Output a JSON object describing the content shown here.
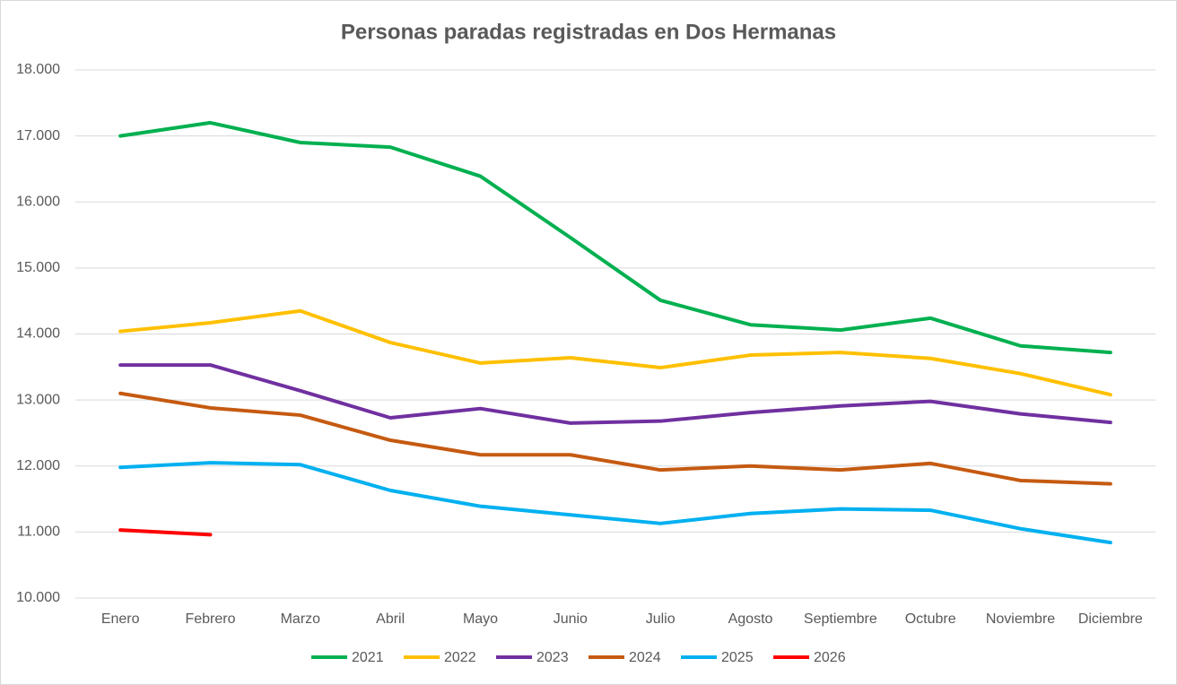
{
  "chart_data": {
    "type": "line",
    "title": "Personas paradas registradas en Dos Hermanas",
    "categories": [
      "Enero",
      "Febrero",
      "Marzo",
      "Abril",
      "Mayo",
      "Junio",
      "Julio",
      "Agosto",
      "Septiembre",
      "Octubre",
      "Noviembre",
      "Diciembre"
    ],
    "ylim": [
      10000,
      18000
    ],
    "yticks": [
      {
        "value": 10000,
        "label": "10.000"
      },
      {
        "value": 11000,
        "label": "11.000"
      },
      {
        "value": 12000,
        "label": "12.000"
      },
      {
        "value": 13000,
        "label": "13.000"
      },
      {
        "value": 14000,
        "label": "14.000"
      },
      {
        "value": 15000,
        "label": "15.000"
      },
      {
        "value": 16000,
        "label": "16.000"
      },
      {
        "value": 17000,
        "label": "17.000"
      },
      {
        "value": 18000,
        "label": "18.000"
      }
    ],
    "grid": true,
    "legend": "bottom",
    "series": [
      {
        "name": "2021",
        "color": "#00b050",
        "values": [
          17000,
          17200,
          16900,
          16830,
          16390,
          15460,
          14510,
          14140,
          14060,
          14240,
          13820,
          13720
        ]
      },
      {
        "name": "2022",
        "color": "#ffc000",
        "values": [
          14040,
          14170,
          14350,
          13870,
          13560,
          13640,
          13490,
          13680,
          13720,
          13630,
          13400,
          13080
        ]
      },
      {
        "name": "2023",
        "color": "#7030a0",
        "values": [
          13530,
          13530,
          13140,
          12730,
          12870,
          12650,
          12680,
          12810,
          12910,
          12980,
          12790,
          12660
        ]
      },
      {
        "name": "2024",
        "color": "#c55a11",
        "values": [
          13100,
          12880,
          12770,
          12390,
          12170,
          12170,
          11940,
          12000,
          11940,
          12040,
          11780,
          11730
        ]
      },
      {
        "name": "2025",
        "color": "#00b0f0",
        "values": [
          11980,
          12050,
          12020,
          11630,
          11390,
          11260,
          11130,
          11280,
          11350,
          11330,
          11050,
          10840
        ]
      },
      {
        "name": "2026",
        "color": "#ff0000",
        "values": [
          11030,
          10960,
          null,
          null,
          null,
          null,
          null,
          null,
          null,
          null,
          null,
          null
        ]
      }
    ]
  }
}
